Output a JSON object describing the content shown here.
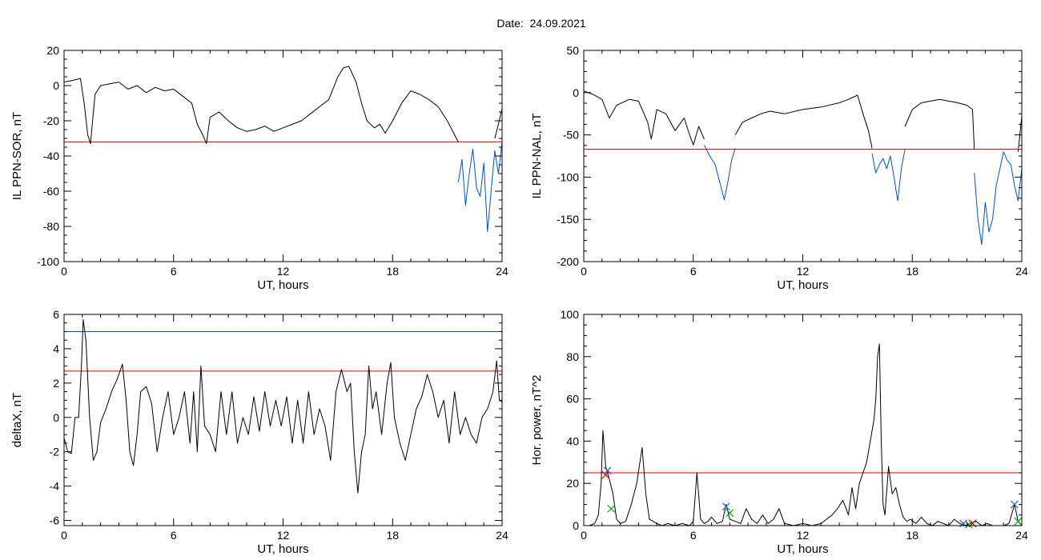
{
  "date_label": "Date:  24.09.2021",
  "colors": {
    "trace": "#000000",
    "threshold": "#e00000",
    "highlight": "#0050d0",
    "marker_blue": "#2060e0",
    "marker_green": "#00aa00",
    "marker_red": "#e00000"
  },
  "chart_data": [
    {
      "type": "line",
      "panel": "top-left",
      "xlabel": "UT, hours",
      "ylabel": "IL PPN-SOR, nT",
      "xlim": [
        0,
        24
      ],
      "ylim": [
        -100,
        20
      ],
      "xticks": [
        0,
        6,
        12,
        18,
        24
      ],
      "yticks": [
        20,
        0,
        -20,
        -40,
        -60,
        -80,
        -100
      ],
      "hlines": [
        {
          "y": -32,
          "color": "red"
        }
      ],
      "series": [
        {
          "color": "black",
          "x": [
            0,
            0.5,
            0.9,
            1.1,
            1.3,
            1.45,
            1.7,
            2,
            2.5,
            3,
            3.5,
            4,
            4.5,
            5,
            5.5,
            6,
            6.5,
            7,
            7.3,
            7.6,
            7.8,
            8,
            8.5,
            9,
            9.5,
            10,
            10.5,
            11,
            11.5,
            12,
            12.5,
            13,
            13.5,
            14,
            14.5,
            15,
            15.3,
            15.6,
            16,
            16.3,
            16.6,
            17,
            17.3,
            17.6,
            18,
            18.5,
            19,
            19.5,
            20,
            20.5,
            21,
            21.4,
            21.6
          ],
          "y": [
            2,
            3,
            4,
            -10,
            -28,
            -33,
            -5,
            0,
            1,
            2,
            -2,
            0,
            -4,
            -1,
            -3,
            -2,
            -6,
            -10,
            -22,
            -28,
            -33,
            -18,
            -15,
            -20,
            -24,
            -26,
            -25,
            -23,
            -26,
            -24,
            -22,
            -20,
            -16,
            -12,
            -8,
            5,
            10,
            11,
            2,
            -10,
            -20,
            -24,
            -22,
            -27,
            -20,
            -10,
            -3,
            -5,
            -8,
            -12,
            -20,
            -28,
            -32
          ]
        },
        {
          "color": "blue",
          "x": [
            21.6,
            21.8,
            22,
            22.2,
            22.4,
            22.6,
            22.8,
            23,
            23.2,
            23.4,
            23.6,
            23.8,
            24
          ],
          "y": [
            -55,
            -42,
            -68,
            -50,
            -36,
            -58,
            -63,
            -44,
            -83,
            -60,
            -37,
            -50,
            -32
          ]
        },
        {
          "color": "black",
          "x": [
            23.6,
            23.8,
            24
          ],
          "y": [
            -30,
            -22,
            -13
          ]
        }
      ]
    },
    {
      "type": "line",
      "panel": "top-right",
      "xlabel": "UT, hours",
      "ylabel": "IL PPN-NAL, nT",
      "xlim": [
        0,
        24
      ],
      "ylim": [
        -200,
        50
      ],
      "xticks": [
        0,
        6,
        12,
        18,
        24
      ],
      "yticks": [
        50,
        0,
        -50,
        -100,
        -150,
        -200
      ],
      "hlines": [
        {
          "y": -67,
          "color": "red"
        }
      ],
      "series": [
        {
          "color": "black",
          "x": [
            0,
            0.5,
            1,
            1.4,
            1.8,
            2.5,
            3,
            3.5,
            3.7,
            4,
            4.5,
            5,
            5.5,
            5.8,
            6,
            6.3,
            6.6
          ],
          "y": [
            2,
            -2,
            -8,
            -30,
            -15,
            -8,
            -10,
            -35,
            -55,
            -20,
            -25,
            -45,
            -30,
            -50,
            -62,
            -40,
            -55
          ]
        },
        {
          "color": "blue",
          "x": [
            6.6,
            6.9,
            7.2,
            7.5,
            7.7,
            7.9,
            8.1,
            8.3
          ],
          "y": [
            -62,
            -75,
            -85,
            -110,
            -127,
            -105,
            -80,
            -66
          ]
        },
        {
          "color": "black",
          "x": [
            8.3,
            8.7,
            9.2,
            9.7,
            10.2,
            11,
            12,
            13,
            14,
            14.5,
            15,
            15.3,
            15.6,
            15.8
          ],
          "y": [
            -50,
            -35,
            -30,
            -25,
            -22,
            -25,
            -20,
            -17,
            -12,
            -8,
            -3,
            -25,
            -45,
            -66
          ]
        },
        {
          "color": "blue",
          "x": [
            15.8,
            16,
            16.2,
            16.4,
            16.6,
            16.8,
            17,
            17.2,
            17.4,
            17.6
          ],
          "y": [
            -72,
            -95,
            -85,
            -78,
            -90,
            -75,
            -100,
            -128,
            -90,
            -67
          ]
        },
        {
          "color": "black",
          "x": [
            17.6,
            18,
            18.5,
            19,
            19.5,
            20,
            20.5,
            21,
            21.3,
            21.4
          ],
          "y": [
            -40,
            -20,
            -12,
            -10,
            -8,
            -10,
            -12,
            -15,
            -20,
            -67
          ]
        },
        {
          "color": "blue",
          "x": [
            21.4,
            21.6,
            21.8,
            22,
            22.2,
            22.4,
            22.6,
            22.8,
            23,
            23.2,
            23.4,
            23.6,
            23.8,
            24
          ],
          "y": [
            -95,
            -150,
            -180,
            -130,
            -165,
            -150,
            -110,
            -90,
            -70,
            -80,
            -85,
            -110,
            -128,
            -90
          ]
        },
        {
          "color": "black",
          "x": [
            23.8,
            24
          ],
          "y": [
            -70,
            -28
          ]
        }
      ]
    },
    {
      "type": "line",
      "panel": "bottom-left",
      "xlabel": "UT, hours",
      "ylabel": "deltaX, nT",
      "xlim": [
        0,
        24
      ],
      "ylim": [
        -6.3,
        6
      ],
      "xticks": [
        0,
        6,
        12,
        18,
        24
      ],
      "yticks": [
        6,
        4,
        2,
        0,
        -2,
        -4,
        -6
      ],
      "hlines": [
        {
          "y": 5.0,
          "color": "blue"
        },
        {
          "y": 2.7,
          "color": "red"
        }
      ],
      "series": [
        {
          "color": "black",
          "x": [
            0,
            0.2,
            0.4,
            0.6,
            0.8,
            0.95,
            1.05,
            1.2,
            1.4,
            1.6,
            1.8,
            2,
            2.3,
            2.6,
            2.9,
            3.2,
            3.4,
            3.6,
            3.8,
            4,
            4.2,
            4.5,
            4.8,
            5.1,
            5.4,
            5.7,
            6,
            6.3,
            6.6,
            6.9,
            7.1,
            7.3,
            7.5,
            7.7,
            8,
            8.3,
            8.6,
            8.9,
            9.2,
            9.5,
            9.8,
            10.1,
            10.4,
            10.7,
            11,
            11.3,
            11.6,
            11.9,
            12.2,
            12.5,
            12.8,
            13.1,
            13.4,
            13.7,
            14,
            14.3,
            14.6,
            14.9,
            15.2,
            15.5,
            15.7,
            15.9,
            16.1,
            16.3,
            16.5,
            16.7,
            16.9,
            17.1,
            17.4,
            17.7,
            17.9,
            18.1,
            18.4,
            18.7,
            19,
            19.3,
            19.6,
            19.9,
            20.2,
            20.5,
            20.8,
            21.1,
            21.4,
            21.7,
            22,
            22.3,
            22.6,
            22.9,
            23.2,
            23.5,
            23.7,
            23.85,
            24
          ],
          "y": [
            -1.2,
            -2,
            -2.1,
            0,
            0,
            3,
            5.7,
            4.5,
            0,
            -2.5,
            -2,
            -0.3,
            0.5,
            1.5,
            2.2,
            3.1,
            1,
            -2,
            -2.8,
            -1,
            1.5,
            1.8,
            0.8,
            -2,
            0,
            1.5,
            -1,
            0,
            1.5,
            -1.5,
            1.5,
            -2,
            3,
            -0.5,
            -1,
            -2,
            1.5,
            -1,
            1.5,
            -1.5,
            0,
            -1,
            1.2,
            -0.8,
            1.5,
            -0.5,
            1,
            -0.5,
            1.2,
            -1.5,
            1,
            -1.5,
            1.5,
            -1,
            0.5,
            -0.5,
            -2.5,
            1.5,
            2.8,
            1.5,
            2,
            -2,
            -4.4,
            -2,
            -1,
            3,
            0.5,
            1.5,
            -1,
            2,
            3.2,
            0,
            -1.5,
            -2.5,
            -1,
            0.5,
            1.2,
            2.5,
            1.5,
            0,
            1,
            -1.5,
            1.5,
            -1,
            0,
            -1,
            -1.5,
            0,
            0.5,
            1.5,
            3.3,
            1,
            0.9
          ]
        }
      ]
    },
    {
      "type": "line",
      "panel": "bottom-right",
      "xlabel": "UT, hours",
      "ylabel": "Hor. power, nT^2",
      "xlim": [
        0,
        24
      ],
      "ylim": [
        0,
        100
      ],
      "xticks": [
        0,
        6,
        12,
        18,
        24
      ],
      "yticks": [
        100,
        80,
        60,
        40,
        20,
        0
      ],
      "hlines": [
        {
          "y": 25,
          "color": "red"
        }
      ],
      "markers": [
        {
          "x": 1.3,
          "y": 26,
          "color": "blue"
        },
        {
          "x": 1.2,
          "y": 24,
          "color": "red"
        },
        {
          "x": 1.5,
          "y": 8,
          "color": "green"
        },
        {
          "x": 7.8,
          "y": 9,
          "color": "blue"
        },
        {
          "x": 8.0,
          "y": 6,
          "color": "green"
        },
        {
          "x": 20.8,
          "y": 1,
          "color": "blue"
        },
        {
          "x": 21.1,
          "y": 0.5,
          "color": "green"
        },
        {
          "x": 21.3,
          "y": 1,
          "color": "red"
        },
        {
          "x": 23.6,
          "y": 10,
          "color": "blue"
        },
        {
          "x": 23.8,
          "y": 2,
          "color": "green"
        }
      ],
      "series": [
        {
          "color": "black",
          "x": [
            0,
            0.3,
            0.6,
            0.8,
            0.95,
            1.05,
            1.2,
            1.4,
            1.6,
            1.8,
            2,
            2.3,
            2.6,
            2.9,
            3.2,
            3.4,
            3.6,
            3.8,
            4,
            4.3,
            4.6,
            5,
            5.4,
            5.8,
            6,
            6.2,
            6.4,
            6.6,
            6.8,
            7,
            7.3,
            7.6,
            7.8,
            8,
            8.3,
            8.6,
            8.9,
            9.2,
            9.5,
            9.8,
            10.1,
            10.4,
            10.7,
            11,
            11.5,
            12,
            12.5,
            13,
            13.3,
            13.6,
            13.9,
            14.2,
            14.5,
            14.7,
            14.9,
            15.1,
            15.3,
            15.5,
            15.7,
            15.9,
            16,
            16.1,
            16.2,
            16.3,
            16.4,
            16.5,
            16.7,
            16.9,
            17.1,
            17.3,
            17.5,
            17.7,
            17.9,
            18.2,
            18.5,
            18.8,
            19.1,
            19.4,
            19.7,
            20,
            20.3,
            20.6,
            20.9,
            21.2,
            21.5,
            21.8,
            22.1,
            22.4,
            22.7,
            23,
            23.3,
            23.6,
            23.8,
            24
          ],
          "y": [
            0,
            0,
            1,
            5,
            20,
            45,
            28,
            22,
            15,
            3,
            1,
            2,
            10,
            20,
            37,
            15,
            3,
            2,
            1,
            0,
            1,
            0,
            1,
            0,
            2,
            25,
            3,
            1,
            2,
            4,
            1,
            2,
            10,
            3,
            2,
            1,
            8,
            3,
            1,
            5,
            1,
            3,
            8,
            1,
            0,
            1,
            0,
            1,
            3,
            5,
            8,
            12,
            5,
            18,
            8,
            20,
            25,
            30,
            40,
            50,
            60,
            80,
            86,
            40,
            10,
            5,
            28,
            15,
            18,
            10,
            4,
            2,
            3,
            1,
            4,
            1,
            0,
            2,
            1,
            0,
            3,
            1,
            0,
            1,
            2,
            0,
            1,
            0,
            0,
            0,
            1,
            10,
            2,
            0
          ]
        }
      ]
    }
  ]
}
